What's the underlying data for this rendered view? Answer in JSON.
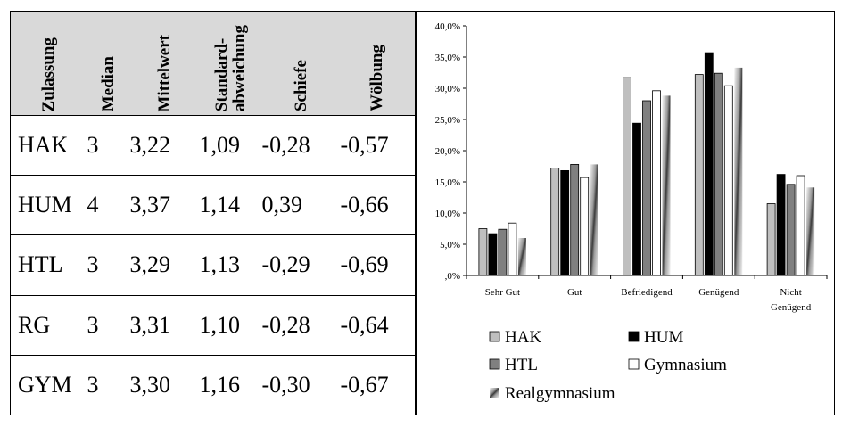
{
  "table": {
    "headers": [
      "Zulassung",
      "Median",
      "Mittelwert",
      "Standard-\nabweichung",
      "Schiefe",
      "Wölbung"
    ],
    "rows": [
      [
        "HAK",
        "3",
        "3,22",
        "1,09",
        "-0,28",
        "-0,57"
      ],
      [
        "HUM",
        "4",
        "3,37",
        "1,14",
        "0,39",
        "-0,66"
      ],
      [
        "HTL",
        "3",
        "3,29",
        "1,13",
        "-0,29",
        "-0,69"
      ],
      [
        "RG",
        "3",
        "3,31",
        "1,10",
        "-0,28",
        "-0,64"
      ],
      [
        "GYM",
        "3",
        "3,30",
        "1,16",
        "-0,30",
        "-0,67"
      ]
    ]
  },
  "chart_data": {
    "type": "bar",
    "categories": [
      "Sehr Gut",
      "Gut",
      "Befriedigend",
      "Genügend",
      "Nicht\nGenügend"
    ],
    "ylim": [
      0,
      40
    ],
    "yticks": [
      ",0%",
      "5,0%",
      "10,0%",
      "15,0%",
      "20,0%",
      "25,0%",
      "30,0%",
      "35,0%",
      "40,0%"
    ],
    "grid": false,
    "legend_placement": "bottom",
    "series": [
      {
        "name": "HAK",
        "values": [
          7.5,
          17.2,
          31.7,
          32.2,
          11.5
        ],
        "color": "#bfbfbf",
        "style": "solid"
      },
      {
        "name": "HUM",
        "values": [
          6.7,
          16.8,
          24.4,
          35.7,
          16.2
        ],
        "color": "#000000",
        "style": "solid"
      },
      {
        "name": "HTL",
        "values": [
          7.4,
          17.8,
          28.0,
          32.4,
          14.6
        ],
        "color": "#808080",
        "style": "solid"
      },
      {
        "name": "Gymnasium",
        "values": [
          8.4,
          15.7,
          29.6,
          30.4,
          16.0
        ],
        "color": "#ffffff",
        "style": "solid"
      },
      {
        "name": "Realgymnasium",
        "values": [
          6.0,
          17.8,
          28.8,
          33.3,
          14.1
        ],
        "color": "#7f7f7f",
        "style": "gradient"
      }
    ]
  }
}
